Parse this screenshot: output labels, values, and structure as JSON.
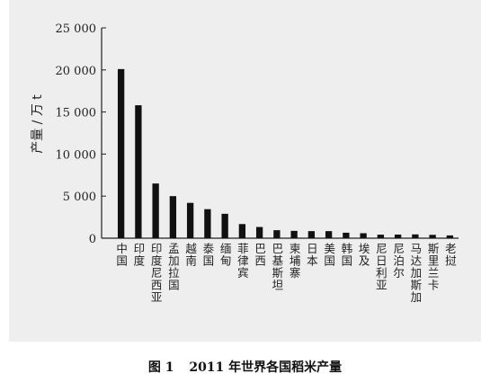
{
  "caption": {
    "figure_no": "图 1",
    "text": "2011 年世界各国稻米产量"
  },
  "chart_data": {
    "type": "bar",
    "ylabel": "产量 / 万 t",
    "xlabel": "",
    "ylim": [
      0,
      25000
    ],
    "yticks": [
      0,
      5000,
      10000,
      15000,
      20000,
      25000
    ],
    "ytick_labels": [
      "0",
      "5 000",
      "10 000",
      "15 000",
      "20 000",
      "25 000"
    ],
    "grid": false,
    "bar_color": "#111111",
    "categories": [
      "中国",
      "印度",
      "印度尼西亚",
      "孟加拉国",
      "越南",
      "泰国",
      "缅甸",
      "菲律宾",
      "巴西",
      "巴基斯坦",
      "柬埔寨",
      "日本",
      "美国",
      "韩国",
      "埃及",
      "尼日利亚",
      "尼泊尔",
      "马达加斯加",
      "斯里兰卡",
      "老挝"
    ],
    "values": [
      20100,
      15800,
      6500,
      5000,
      4200,
      3450,
      2900,
      1680,
      1330,
      950,
      870,
      840,
      840,
      650,
      590,
      420,
      430,
      450,
      400,
      330
    ]
  }
}
